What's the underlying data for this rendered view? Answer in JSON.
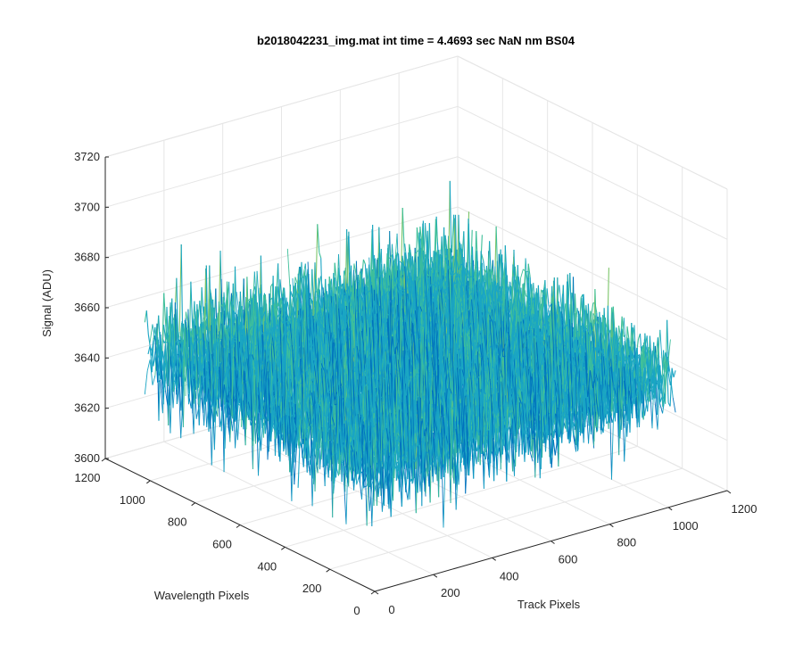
{
  "chart_data": {
    "type": "surface",
    "title": "b2018042231_img.mat int time = 4.4693 sec  NaN nm BS04",
    "xlabel": "Track Pixels",
    "ylabel": "Wavelength Pixels",
    "zlabel": "Signal (ADU)",
    "xlim": [
      0,
      1200
    ],
    "ylim": [
      0,
      1200
    ],
    "zlim": [
      3600,
      3720
    ],
    "xticks": [
      "0",
      "200",
      "400",
      "600",
      "800",
      "1000",
      "1200"
    ],
    "yticks": [
      "0",
      "200",
      "400",
      "600",
      "800",
      "1000",
      "1200"
    ],
    "zticks": [
      "3600",
      "3620",
      "3640",
      "3660",
      "3680",
      "3700",
      "3720"
    ],
    "grid": true,
    "data_extent": {
      "track_pixels": [
        0,
        1024
      ],
      "wavelength_pixels": [
        0,
        1024
      ]
    },
    "signal_mean": 3650,
    "signal_range_approx": [
      3615,
      3712
    ],
    "colormap": [
      "#0072bd",
      "#1aa5c4",
      "#3fbf9a",
      "#7cc56a",
      "#e5c244"
    ]
  }
}
